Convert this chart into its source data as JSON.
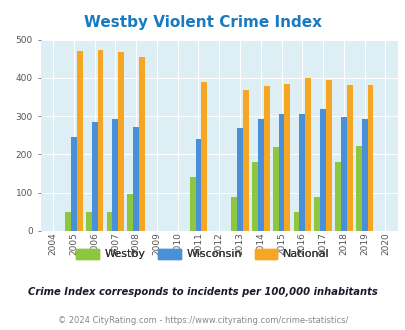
{
  "title": "Westby Violent Crime Index",
  "years": [
    2004,
    2005,
    2006,
    2007,
    2008,
    2009,
    2010,
    2011,
    2012,
    2013,
    2014,
    2015,
    2016,
    2017,
    2018,
    2019,
    2020
  ],
  "westby": [
    null,
    50,
    50,
    50,
    97,
    null,
    null,
    140,
    null,
    90,
    180,
    220,
    50,
    90,
    180,
    223,
    null
  ],
  "wisconsin": [
    null,
    245,
    284,
    292,
    272,
    null,
    null,
    240,
    null,
    270,
    292,
    305,
    305,
    318,
    298,
    293,
    null
  ],
  "national": [
    null,
    470,
    473,
    467,
    455,
    null,
    null,
    388,
    null,
    368,
    378,
    384,
    399,
    394,
    381,
    381,
    null
  ],
  "bar_width": 0.28,
  "color_westby": "#8dc63f",
  "color_wisconsin": "#4a90d9",
  "color_national": "#f5a623",
  "bg_color": "#ddeef5",
  "title_color": "#1a7abf",
  "ylabel_range": [
    0,
    500
  ],
  "yticks": [
    0,
    100,
    200,
    300,
    400,
    500
  ],
  "subtitle": "Crime Index corresponds to incidents per 100,000 inhabitants",
  "footer": "© 2024 CityRating.com - https://www.cityrating.com/crime-statistics/",
  "subtitle_color": "#1a1a2e",
  "footer_color": "#888888"
}
